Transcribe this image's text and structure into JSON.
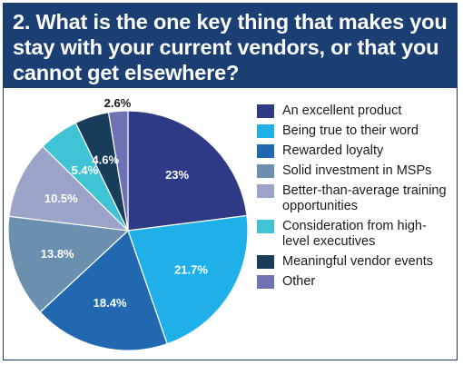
{
  "header": {
    "title": "2. What is the one key thing that makes you stay with your current vendors, or that you cannot get elsewhere?"
  },
  "chart_data": {
    "type": "pie",
    "title": "2. What is the one key thing that makes you stay with your current vendors, or that you cannot get elsewhere?",
    "categories": [
      "An excellent product",
      "Being true to their word",
      "Rewarded loyalty",
      "Solid investment in MSPs",
      "Better-than-average training opportunities",
      "Consideration from high-level executives",
      "Meaningful vendor events",
      "Other"
    ],
    "values": [
      23,
      21.7,
      18.4,
      13.8,
      10.5,
      5.4,
      4.6,
      2.6
    ],
    "labels": [
      "23%",
      "21.7%",
      "18.4%",
      "13.8%",
      "10.5%",
      "5.4%",
      "4.6%",
      "2.6%"
    ],
    "colors": [
      "#2e3a86",
      "#1fb0ea",
      "#2268b1",
      "#6b8fae",
      "#9ca3c8",
      "#40c4d5",
      "#173d5a",
      "#6e71b2"
    ],
    "label_colors": [
      "#ffffff",
      "#ffffff",
      "#ffffff",
      "#ffffff",
      "#ffffff",
      "#ffffff",
      "#ffffff",
      "#1a1a1a"
    ],
    "legend_position": "right",
    "start_angle": "top",
    "direction": "clockwise"
  }
}
